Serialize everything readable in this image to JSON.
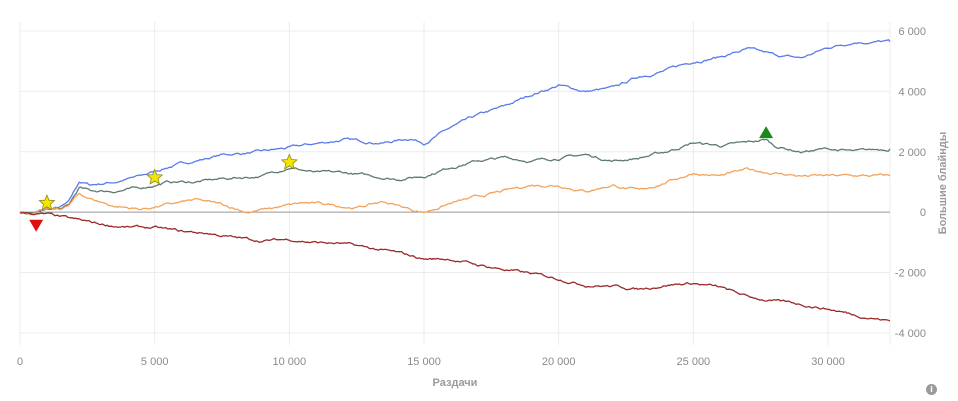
{
  "chart_data": {
    "type": "line",
    "xlabel": "Раздачи",
    "ylabel": "Большие блайнды",
    "xlim": [
      0,
      32300
    ],
    "ylim": [
      -4400,
      6300
    ],
    "x_ticks": [
      0,
      5000,
      10000,
      15000,
      20000,
      25000,
      30000
    ],
    "x_tick_labels": [
      "0",
      "5 000",
      "10 000",
      "15 000",
      "20 000",
      "25 000",
      "30 000"
    ],
    "y_ticks": [
      -4000,
      -2000,
      0,
      2000,
      4000,
      6000
    ],
    "y_tick_labels": [
      "-4 000",
      "-2 000",
      "0",
      "2 000",
      "4 000",
      "6 000"
    ],
    "grid": true,
    "series": [
      {
        "color": "#5b7be8",
        "points": [
          [
            0,
            0
          ],
          [
            500,
            -30
          ],
          [
            1000,
            80
          ],
          [
            1500,
            150
          ],
          [
            1800,
            300
          ],
          [
            2200,
            1000
          ],
          [
            2600,
            900
          ],
          [
            3500,
            1000
          ],
          [
            4500,
            1200
          ],
          [
            5500,
            1500
          ],
          [
            6500,
            1700
          ],
          [
            7500,
            1900
          ],
          [
            9000,
            2000
          ],
          [
            10500,
            2200
          ],
          [
            12000,
            2400
          ],
          [
            13500,
            2300
          ],
          [
            14500,
            2450
          ],
          [
            15000,
            2300
          ],
          [
            16000,
            2800
          ],
          [
            17000,
            3200
          ],
          [
            18000,
            3500
          ],
          [
            19000,
            3900
          ],
          [
            20000,
            4200
          ],
          [
            21000,
            4000
          ],
          [
            22000,
            4100
          ],
          [
            23000,
            4500
          ],
          [
            24000,
            4700
          ],
          [
            25000,
            5000
          ],
          [
            26000,
            5150
          ],
          [
            27000,
            5400
          ],
          [
            28000,
            5200
          ],
          [
            29000,
            5100
          ],
          [
            30000,
            5450
          ],
          [
            31000,
            5650
          ],
          [
            32300,
            5650
          ]
        ]
      },
      {
        "color": "#5f7b6e",
        "points": [
          [
            0,
            0
          ],
          [
            500,
            -40
          ],
          [
            1000,
            100
          ],
          [
            1500,
            100
          ],
          [
            1800,
            200
          ],
          [
            2200,
            800
          ],
          [
            2600,
            700
          ],
          [
            3500,
            700
          ],
          [
            4500,
            800
          ],
          [
            5500,
            1000
          ],
          [
            6500,
            1000
          ],
          [
            7500,
            1100
          ],
          [
            9000,
            1200
          ],
          [
            10000,
            1500
          ],
          [
            11000,
            1300
          ],
          [
            12000,
            1300
          ],
          [
            13000,
            1200
          ],
          [
            14000,
            1100
          ],
          [
            15000,
            1200
          ],
          [
            16000,
            1500
          ],
          [
            17000,
            1700
          ],
          [
            18000,
            1800
          ],
          [
            19000,
            1700
          ],
          [
            20000,
            1800
          ],
          [
            21000,
            1900
          ],
          [
            22000,
            1700
          ],
          [
            23000,
            1800
          ],
          [
            24000,
            2000
          ],
          [
            25000,
            2300
          ],
          [
            26000,
            2200
          ],
          [
            27000,
            2300
          ],
          [
            27700,
            2400
          ],
          [
            28000,
            2200
          ],
          [
            29000,
            2000
          ],
          [
            30000,
            2100
          ],
          [
            31000,
            2000
          ],
          [
            32300,
            2100
          ]
        ]
      },
      {
        "color": "#f4a35a",
        "points": [
          [
            0,
            0
          ],
          [
            500,
            -50
          ],
          [
            1000,
            80
          ],
          [
            1500,
            100
          ],
          [
            1800,
            200
          ],
          [
            2200,
            600
          ],
          [
            2600,
            450
          ],
          [
            3500,
            200
          ],
          [
            4500,
            100
          ],
          [
            5500,
            250
          ],
          [
            6500,
            400
          ],
          [
            7500,
            250
          ],
          [
            8500,
            0
          ],
          [
            9500,
            150
          ],
          [
            10500,
            300
          ],
          [
            11500,
            250
          ],
          [
            12500,
            150
          ],
          [
            13500,
            350
          ],
          [
            14500,
            100
          ],
          [
            15000,
            0
          ],
          [
            16000,
            300
          ],
          [
            17000,
            500
          ],
          [
            18000,
            700
          ],
          [
            19000,
            900
          ],
          [
            20000,
            900
          ],
          [
            21000,
            700
          ],
          [
            22000,
            900
          ],
          [
            23000,
            700
          ],
          [
            24000,
            1000
          ],
          [
            25000,
            1300
          ],
          [
            26000,
            1200
          ],
          [
            27000,
            1400
          ],
          [
            28000,
            1300
          ],
          [
            29000,
            1200
          ],
          [
            30000,
            1200
          ],
          [
            31000,
            1200
          ],
          [
            32300,
            1200
          ]
        ]
      },
      {
        "color": "#9b2a2a",
        "points": [
          [
            0,
            0
          ],
          [
            1000,
            -80
          ],
          [
            2000,
            -250
          ],
          [
            3000,
            -400
          ],
          [
            4000,
            -500
          ],
          [
            5000,
            -520
          ],
          [
            6000,
            -650
          ],
          [
            7000,
            -700
          ],
          [
            8000,
            -850
          ],
          [
            9000,
            -950
          ],
          [
            10000,
            -900
          ],
          [
            11000,
            -1000
          ],
          [
            12000,
            -1050
          ],
          [
            13000,
            -1200
          ],
          [
            14000,
            -1350
          ],
          [
            15000,
            -1550
          ],
          [
            16000,
            -1550
          ],
          [
            17000,
            -1750
          ],
          [
            18000,
            -1900
          ],
          [
            19000,
            -2050
          ],
          [
            20000,
            -2200
          ],
          [
            21000,
            -2400
          ],
          [
            22000,
            -2450
          ],
          [
            23000,
            -2550
          ],
          [
            24000,
            -2400
          ],
          [
            25000,
            -2350
          ],
          [
            26000,
            -2500
          ],
          [
            27000,
            -2800
          ],
          [
            28000,
            -2950
          ],
          [
            29000,
            -3050
          ],
          [
            30000,
            -3200
          ],
          [
            31000,
            -3400
          ],
          [
            32300,
            -3600
          ]
        ]
      }
    ],
    "markers": [
      {
        "kind": "star",
        "x": 1000,
        "y": 300,
        "color": "#f5e400"
      },
      {
        "kind": "star",
        "x": 5000,
        "y": 1150,
        "color": "#f5e400"
      },
      {
        "kind": "star",
        "x": 10000,
        "y": 1650,
        "color": "#f5e400"
      },
      {
        "kind": "triangle-down",
        "x": 600,
        "y": -450,
        "color": "#e01010"
      },
      {
        "kind": "triangle-up",
        "x": 27700,
        "y": 2650,
        "color": "#1a8a1a"
      }
    ]
  },
  "ui": {
    "info_icon": "i",
    "info_icon_name": "info-icon"
  }
}
